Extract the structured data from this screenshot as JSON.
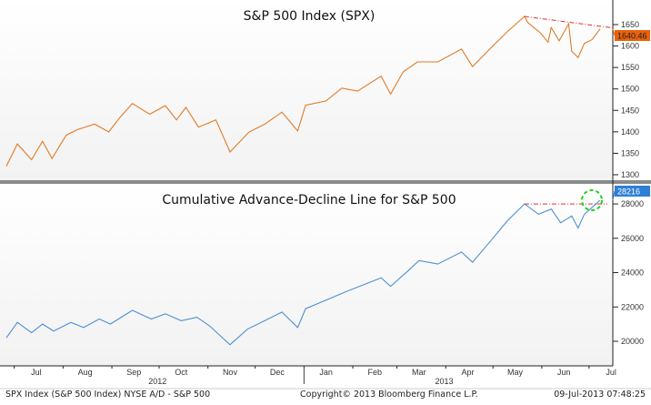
{
  "chart_data": [
    {
      "type": "line",
      "title": "S&P 500 Index (SPX)",
      "ylim": [
        1280,
        1680
      ],
      "yticks": [
        1300,
        1350,
        1400,
        1450,
        1500,
        1550,
        1600,
        1650
      ],
      "last_value_label": "1640.46",
      "color": "#e07b28",
      "last_label_color": "#e8620c",
      "trendline_color": "#e0303a",
      "trendline": [
        [
          "2013-05-21",
          1669
        ],
        [
          "2013-07-08",
          1638
        ]
      ],
      "points": [
        [
          "2012-06-26",
          1320
        ],
        [
          "2012-07-03",
          1372
        ],
        [
          "2012-07-12",
          1335
        ],
        [
          "2012-07-19",
          1378
        ],
        [
          "2012-07-25",
          1338
        ],
        [
          "2012-08-03",
          1392
        ],
        [
          "2012-08-10",
          1405
        ],
        [
          "2012-08-21",
          1418
        ],
        [
          "2012-08-30",
          1400
        ],
        [
          "2012-09-06",
          1433
        ],
        [
          "2012-09-14",
          1466
        ],
        [
          "2012-09-25",
          1441
        ],
        [
          "2012-10-05",
          1461
        ],
        [
          "2012-10-12",
          1428
        ],
        [
          "2012-10-18",
          1457
        ],
        [
          "2012-10-26",
          1411
        ],
        [
          "2012-11-06",
          1428
        ],
        [
          "2012-11-15",
          1353
        ],
        [
          "2012-11-27",
          1399
        ],
        [
          "2012-12-07",
          1418
        ],
        [
          "2012-12-18",
          1446
        ],
        [
          "2012-12-28",
          1402
        ],
        [
          "2013-01-02",
          1462
        ],
        [
          "2013-01-15",
          1472
        ],
        [
          "2013-01-25",
          1502
        ],
        [
          "2013-02-04",
          1495
        ],
        [
          "2013-02-19",
          1530
        ],
        [
          "2013-02-25",
          1488
        ],
        [
          "2013-03-05",
          1540
        ],
        [
          "2013-03-14",
          1563
        ],
        [
          "2013-03-27",
          1563
        ],
        [
          "2013-04-11",
          1593
        ],
        [
          "2013-04-18",
          1552
        ],
        [
          "2013-04-30",
          1597
        ],
        [
          "2013-05-10",
          1633
        ],
        [
          "2013-05-21",
          1669
        ],
        [
          "2013-05-23",
          1655
        ],
        [
          "2013-05-31",
          1631
        ],
        [
          "2013-06-05",
          1609
        ],
        [
          "2013-06-07",
          1643
        ],
        [
          "2013-06-12",
          1612
        ],
        [
          "2013-06-18",
          1652
        ],
        [
          "2013-06-20",
          1588
        ],
        [
          "2013-06-24",
          1573
        ],
        [
          "2013-06-28",
          1606
        ],
        [
          "2013-07-03",
          1615
        ],
        [
          "2013-07-08",
          1640
        ]
      ]
    },
    {
      "type": "line",
      "title": "Cumulative Advance-Decline Line for S&P 500",
      "ylim": [
        19000,
        28800
      ],
      "yticks": [
        20000,
        22000,
        24000,
        26000,
        28000
      ],
      "last_value_label": "28216",
      "color": "#4f8fd0",
      "last_label_color": "#2d7fd6",
      "trendline_color": "#e0303a",
      "highlight_color": "#22cc22",
      "trendline": [
        [
          "2013-05-21",
          28000
        ],
        [
          "2013-07-08",
          28000
        ]
      ],
      "points": [
        [
          "2012-06-26",
          20200
        ],
        [
          "2012-07-03",
          21100
        ],
        [
          "2012-07-12",
          20500
        ],
        [
          "2012-07-19",
          21000
        ],
        [
          "2012-07-26",
          20600
        ],
        [
          "2012-08-06",
          21100
        ],
        [
          "2012-08-14",
          20800
        ],
        [
          "2012-08-24",
          21300
        ],
        [
          "2012-08-31",
          21000
        ],
        [
          "2012-09-14",
          21800
        ],
        [
          "2012-09-26",
          21300
        ],
        [
          "2012-10-05",
          21600
        ],
        [
          "2012-10-15",
          21200
        ],
        [
          "2012-10-25",
          21400
        ],
        [
          "2012-11-02",
          20900
        ],
        [
          "2012-11-15",
          19800
        ],
        [
          "2012-11-26",
          20700
        ],
        [
          "2012-12-07",
          21200
        ],
        [
          "2012-12-18",
          21700
        ],
        [
          "2012-12-28",
          20800
        ],
        [
          "2013-01-02",
          21900
        ],
        [
          "2013-01-15",
          22400
        ],
        [
          "2013-01-28",
          22900
        ],
        [
          "2013-02-08",
          23300
        ],
        [
          "2013-02-19",
          23700
        ],
        [
          "2013-02-25",
          23200
        ],
        [
          "2013-03-08",
          24100
        ],
        [
          "2013-03-15",
          24700
        ],
        [
          "2013-03-27",
          24500
        ],
        [
          "2013-04-11",
          25200
        ],
        [
          "2013-04-18",
          24600
        ],
        [
          "2013-04-30",
          25900
        ],
        [
          "2013-05-10",
          27000
        ],
        [
          "2013-05-21",
          28000
        ],
        [
          "2013-05-30",
          27400
        ],
        [
          "2013-06-07",
          27700
        ],
        [
          "2013-06-13",
          26900
        ],
        [
          "2013-06-20",
          27300
        ],
        [
          "2013-06-24",
          26600
        ],
        [
          "2013-06-28",
          27400
        ],
        [
          "2013-07-03",
          27800
        ],
        [
          "2013-07-08",
          28216
        ]
      ]
    }
  ],
  "x_axis": {
    "months": [
      "Jul",
      "Aug",
      "Sep",
      "Oct",
      "Nov",
      "Dec",
      "Jan",
      "Feb",
      "Mar",
      "Apr",
      "May",
      "Jun",
      "Jul"
    ],
    "month_dates": [
      "2012-07-15",
      "2012-08-15",
      "2012-09-15",
      "2012-10-15",
      "2012-11-15",
      "2012-12-15",
      "2013-01-15",
      "2013-02-15",
      "2013-03-15",
      "2013-04-15",
      "2013-05-15",
      "2013-06-15",
      "2013-07-15"
    ],
    "years": [
      {
        "label": "2012",
        "date": "2012-09-30"
      },
      {
        "label": "2013",
        "date": "2013-03-31"
      }
    ]
  },
  "footer": {
    "left": "SPX Index (S&P 500 Index) NYSE A/D - S&P 500",
    "center": "Copyright© 2013 Bloomberg Finance L.P.",
    "right": "09-Jul-2013 07:48:25"
  }
}
